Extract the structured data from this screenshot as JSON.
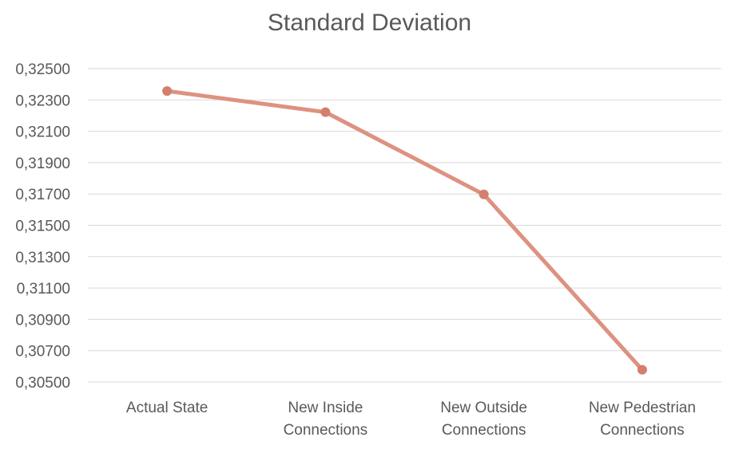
{
  "chart_data": {
    "type": "line",
    "title": "Standard Deviation",
    "xlabel": "",
    "ylabel": "",
    "categories": [
      [
        "Actual State"
      ],
      [
        "New Inside",
        "Connections"
      ],
      [
        "New Outside",
        "Connections"
      ],
      [
        "New Pedestrian",
        "Connections"
      ]
    ],
    "series": [
      {
        "values": [
          0.32357,
          0.32222,
          0.31697,
          0.30578
        ]
      }
    ],
    "ylim": [
      0.305,
      0.325
    ],
    "yticks": [
      "0,30500",
      "0,30700",
      "0,30900",
      "0,31100",
      "0,31300",
      "0,31500",
      "0,31700",
      "0,31900",
      "0,32100",
      "0,32300",
      "0,32500"
    ],
    "grid": true,
    "legend": "none",
    "colors": {
      "line": "#dd9281",
      "marker": "#d47f6b",
      "grid": "#d9d9d9",
      "text": "#595959"
    }
  }
}
